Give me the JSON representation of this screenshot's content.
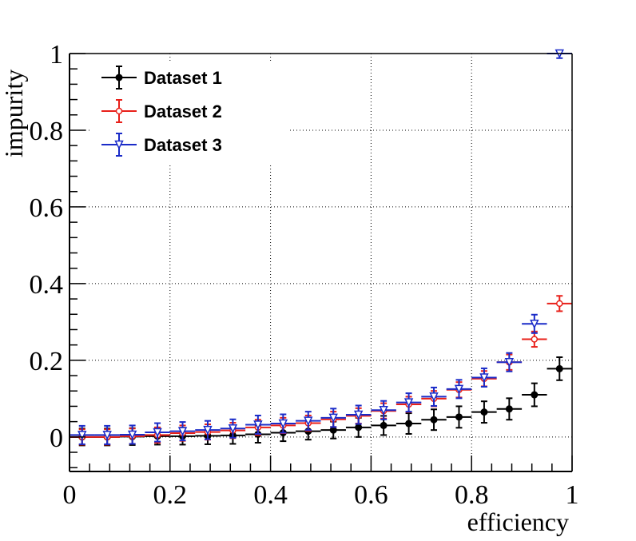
{
  "chart_data": {
    "type": "scatter",
    "title": "",
    "xlabel": "efficiency",
    "ylabel": "impurity",
    "xlim": [
      0,
      1
    ],
    "ylim": [
      -0.09,
      1.0
    ],
    "xticks": [
      "0",
      "0.2",
      "0.4",
      "0.6",
      "0.8",
      "1"
    ],
    "yticks": [
      "0",
      "0.2",
      "0.4",
      "0.6",
      "0.8",
      "1"
    ],
    "grid": true,
    "legend_position": "top-left",
    "x": [
      0.025,
      0.075,
      0.125,
      0.175,
      0.225,
      0.275,
      0.325,
      0.375,
      0.425,
      0.475,
      0.525,
      0.575,
      0.625,
      0.675,
      0.725,
      0.775,
      0.825,
      0.875,
      0.925,
      0.975
    ],
    "x_halfwidth": 0.025,
    "series": [
      {
        "name": "Dataset 1",
        "color": "#000000",
        "marker": "filled-circle",
        "values": [
          0.0,
          0.0,
          0.001,
          0.002,
          0.002,
          0.003,
          0.004,
          0.007,
          0.011,
          0.015,
          0.018,
          0.025,
          0.03,
          0.035,
          0.045,
          0.052,
          0.065,
          0.073,
          0.11,
          0.178
        ],
        "errors": [
          0.022,
          0.022,
          0.022,
          0.022,
          0.022,
          0.022,
          0.022,
          0.022,
          0.022,
          0.022,
          0.022,
          0.025,
          0.025,
          0.027,
          0.027,
          0.028,
          0.028,
          0.028,
          0.03,
          0.03
        ]
      },
      {
        "name": "Dataset 2",
        "color": "#e8201a",
        "marker": "open-circle",
        "values": [
          0.0,
          0.0,
          0.002,
          0.005,
          0.01,
          0.013,
          0.017,
          0.025,
          0.03,
          0.036,
          0.046,
          0.055,
          0.068,
          0.085,
          0.1,
          0.123,
          0.152,
          0.195,
          0.255,
          0.348
        ],
        "errors": [
          0.02,
          0.02,
          0.02,
          0.02,
          0.02,
          0.02,
          0.02,
          0.02,
          0.02,
          0.02,
          0.02,
          0.02,
          0.02,
          0.02,
          0.02,
          0.02,
          0.02,
          0.02,
          0.02,
          0.02
        ]
      },
      {
        "name": "Dataset 3",
        "color": "#1a2bc8",
        "marker": "open-triangle-down",
        "values": [
          0.005,
          0.005,
          0.006,
          0.012,
          0.015,
          0.018,
          0.022,
          0.032,
          0.035,
          0.042,
          0.05,
          0.058,
          0.07,
          0.09,
          0.105,
          0.125,
          0.155,
          0.195,
          0.295,
          1.0
        ],
        "errors": [
          0.024,
          0.024,
          0.024,
          0.024,
          0.024,
          0.024,
          0.024,
          0.024,
          0.024,
          0.024,
          0.024,
          0.024,
          0.024,
          0.024,
          0.024,
          0.024,
          0.024,
          0.024,
          0.024,
          0.012
        ]
      }
    ]
  }
}
